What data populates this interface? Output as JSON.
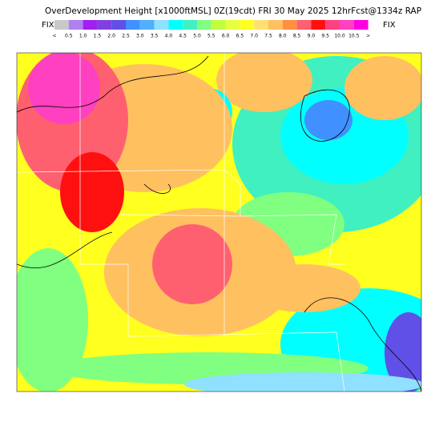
{
  "header": {
    "title": "OverDevelopment Height [x1000ftMSL] 0Z(19cdt) FRI 30 May 2025 12hrFcst@1334z RAP",
    "fix_left": "FIX",
    "fix_right": "FIX"
  },
  "legend": {
    "labels": [
      "<",
      "0.5",
      "1.0",
      "1.5",
      "2.0",
      "2.5",
      "3.0",
      "3.5",
      "4.0",
      "4.5",
      "5.0",
      "5.5",
      "6.0",
      "6.5",
      "7.0",
      "7.5",
      "8.0",
      "8.5",
      "9.0",
      "9.5",
      "10.0",
      "10.5",
      ">"
    ],
    "colors": [
      "#c8c8c8",
      "#b080f0",
      "#a020f0",
      "#8040e0",
      "#6050e8",
      "#4090ff",
      "#50b0ff",
      "#90e0ff",
      "#00ffff",
      "#40f0c0",
      "#80ff80",
      "#c0ff40",
      "#e8ff40",
      "#ffff20",
      "#ffe070",
      "#ffc060",
      "#ff9040",
      "#ff6070",
      "#ff1010",
      "#ff4080",
      "#ff40c0",
      "#ff00e0"
    ]
  }
}
